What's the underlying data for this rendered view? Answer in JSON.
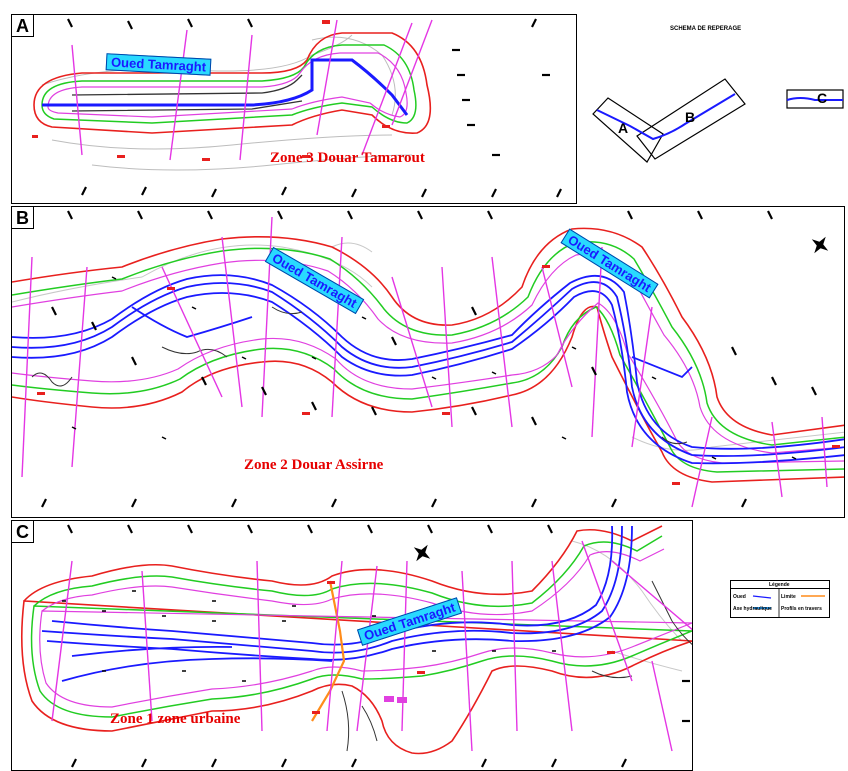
{
  "panels": {
    "a": {
      "label": "A",
      "zone": "Zone 3 Douar Tamarout",
      "river": "Oued Tamraght"
    },
    "b": {
      "label": "B",
      "zone": "Zone 2 Douar Assirne",
      "river_1": "Oued Tamraght",
      "river_2": "Oued Tamraght"
    },
    "c": {
      "label": "C",
      "zone": "Zone 1 zone urbaine",
      "river": "Oued Tamraght"
    }
  },
  "key_map": {
    "title": "SCHEMA DE REPERAGE",
    "segment_a": "A",
    "segment_b": "B",
    "segment_c": "C"
  },
  "legend": {
    "title": "Légende",
    "item_1": "Oued",
    "item_2": "Limite",
    "item_3": "Axe hydraulique",
    "item_4": "Profils en travers"
  },
  "colors": {
    "flood_limit_outer": "#e8201e",
    "flood_limit_middle": "#22cc22",
    "flood_limit_inner": "#e040e0",
    "river_channel": "#1a1aff",
    "cross_section": "#e436e4",
    "zone_label": "#e60000",
    "river_label_bg": "#29d9ff"
  }
}
